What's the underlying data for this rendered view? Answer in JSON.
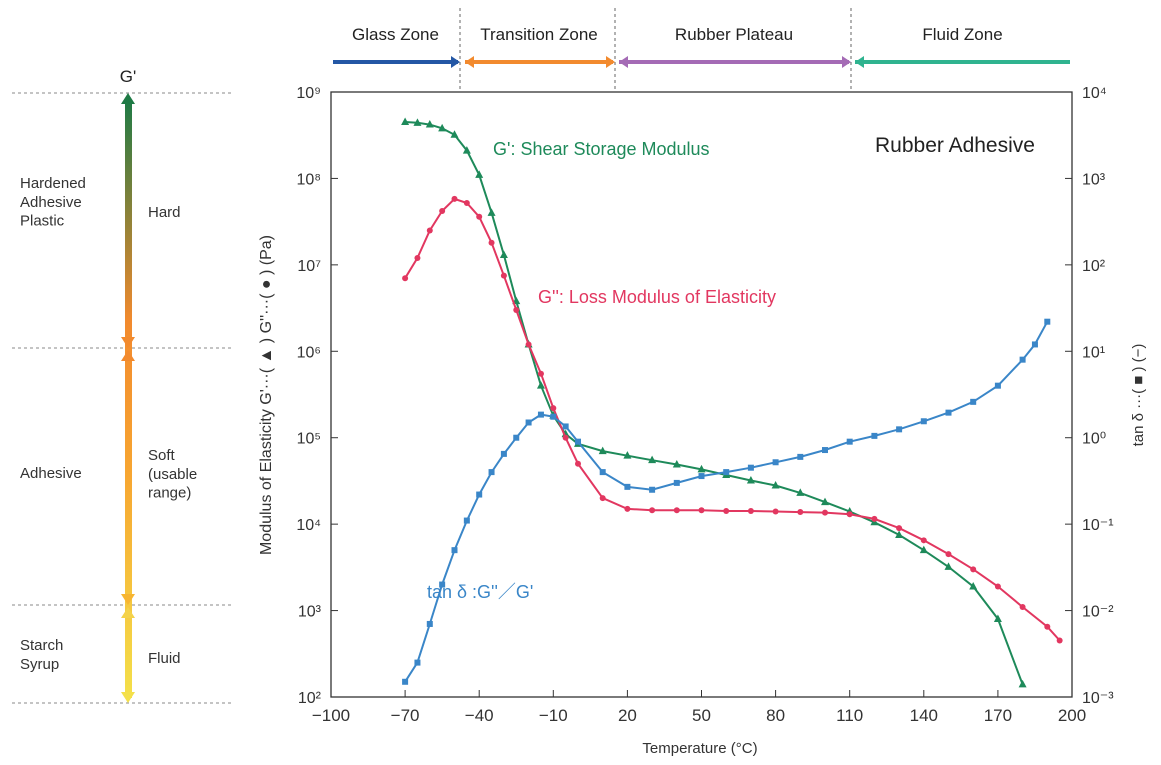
{
  "scale_panel": {
    "header": "G'",
    "rows": [
      {
        "state": "Hardened\nAdhesive\nPlastic",
        "level": "Hard"
      },
      {
        "state": "Adhesive",
        "level": "Soft\n(usable\nrange)"
      },
      {
        "state": "Starch\nSyrup",
        "level": "Fluid"
      }
    ],
    "colors": {
      "hard": "#1e7a45",
      "soft": "#f7a531",
      "fluid": "#f4e04a"
    }
  },
  "zones": [
    {
      "label": "Glass Zone",
      "color": "#2457a5"
    },
    {
      "label": "Transition Zone",
      "color": "#f28a2e"
    },
    {
      "label": "Rubber Plateau",
      "color": "#a46bb5"
    },
    {
      "label": "Fluid Zone",
      "color": "#2fb38f"
    }
  ],
  "chart_data": {
    "type": "line",
    "title": "Rubber Adhesive",
    "xlabel": "Temperature (°C)",
    "ylabel_left": "Modulus of Elasticity G'···( ▲ ) G''···( ● ) (Pa)",
    "ylabel_right": "tan δ ···( ■ ) (−)",
    "xlim": [
      -100,
      200
    ],
    "x_ticks": [
      "−100",
      "−70",
      "−40",
      "−10",
      "20",
      "50",
      "80",
      "110",
      "140",
      "170",
      "200"
    ],
    "y_left_log_range": [
      2,
      9
    ],
    "y_left_ticks": [
      "10²",
      "10³",
      "10⁴",
      "10⁵",
      "10⁶",
      "10⁷",
      "10⁸",
      "10⁹"
    ],
    "y_right_log_range": [
      -3,
      4
    ],
    "y_right_ticks": [
      "10⁻³",
      "10⁻²",
      "10⁻¹",
      "10⁰",
      "10¹",
      "10²",
      "10³",
      "10⁴"
    ],
    "series": [
      {
        "name": "G': Shear Storage Modulus",
        "axis": "left",
        "marker": "triangle",
        "color": "#1e8a5a",
        "x": [
          -70,
          -65,
          -60,
          -55,
          -50,
          -45,
          -40,
          -35,
          -30,
          -25,
          -20,
          -15,
          -10,
          -5,
          0,
          10,
          20,
          30,
          40,
          50,
          60,
          70,
          80,
          90,
          100,
          110,
          120,
          130,
          140,
          150,
          160,
          170,
          180
        ],
        "y": [
          450000000.0,
          440000000.0,
          420000000.0,
          380000000.0,
          320000000.0,
          210000000.0,
          110000000.0,
          40000000.0,
          13000000.0,
          3800000.0,
          1200000.0,
          400000.0,
          180000.0,
          110000.0,
          85000.0,
          70000.0,
          62000.0,
          55000.0,
          49000.0,
          43000.0,
          37000.0,
          32000.0,
          28000.0,
          23000.0,
          18000.0,
          14000.0,
          10500.0,
          7500.0,
          5000.0,
          3200.0,
          1900.0,
          800.0,
          140.0
        ]
      },
      {
        "name": "G'': Loss Modulus of Elasticity",
        "axis": "left",
        "marker": "circle",
        "color": "#e23760",
        "x": [
          -70,
          -65,
          -60,
          -55,
          -50,
          -45,
          -40,
          -35,
          -30,
          -25,
          -20,
          -15,
          -10,
          -5,
          0,
          10,
          20,
          30,
          40,
          50,
          60,
          70,
          80,
          90,
          100,
          110,
          120,
          130,
          140,
          150,
          160,
          170,
          180,
          190,
          195
        ],
        "y": [
          7000000.0,
          12000000.0,
          25000000.0,
          42000000.0,
          58000000.0,
          52000000.0,
          36000000.0,
          18000000.0,
          7500000.0,
          3000000.0,
          1200000.0,
          550000.0,
          220000.0,
          100000.0,
          50000.0,
          20000.0,
          15000.0,
          14500.0,
          14500.0,
          14500.0,
          14200.0,
          14200.0,
          14000.0,
          13800.0,
          13600.0,
          13000.0,
          11500.0,
          9000.0,
          6500.0,
          4500.0,
          3000.0,
          1900.0,
          1100.0,
          650.0,
          450.0
        ]
      },
      {
        "name": "tan δ :G''／G'",
        "axis": "right",
        "marker": "square",
        "color": "#3a86c8",
        "x": [
          -70,
          -65,
          -60,
          -55,
          -50,
          -45,
          -40,
          -35,
          -30,
          -25,
          -20,
          -15,
          -10,
          -5,
          0,
          10,
          20,
          30,
          40,
          50,
          60,
          70,
          80,
          90,
          100,
          110,
          120,
          130,
          140,
          150,
          160,
          170,
          180,
          185,
          190
        ],
        "y": [
          0.0015,
          0.0025,
          0.007,
          0.02,
          0.05,
          0.11,
          0.22,
          0.4,
          0.65,
          1.0,
          1.5,
          1.85,
          1.75,
          1.35,
          0.9,
          0.4,
          0.27,
          0.25,
          0.3,
          0.36,
          0.4,
          0.45,
          0.52,
          0.6,
          0.72,
          0.9,
          1.05,
          1.25,
          1.55,
          1.95,
          2.6,
          4.0,
          8.0,
          12.0,
          22.0
        ]
      }
    ]
  }
}
